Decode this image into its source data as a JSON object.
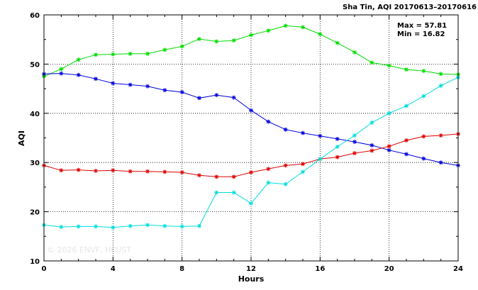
{
  "chart_data": {
    "type": "line",
    "title": "Sha Tin, AQI 20170613–20170616",
    "stats": [
      "Max = 57.81",
      "Min = 16.82"
    ],
    "xlabel": "Hours",
    "ylabel": "AQI",
    "xlim": [
      0,
      24
    ],
    "ylim": [
      10,
      60
    ],
    "xticks": [
      0,
      4,
      8,
      12,
      16,
      20,
      24
    ],
    "yticks": [
      10,
      20,
      30,
      40,
      50,
      60
    ],
    "grid": true,
    "watermark": "© 2026  ENVF, HKUST",
    "x": [
      0,
      1,
      2,
      3,
      4,
      5,
      6,
      7,
      8,
      9,
      10,
      11,
      12,
      13,
      14,
      15,
      16,
      17,
      18,
      19,
      20,
      21,
      22,
      23,
      24
    ],
    "series": [
      {
        "color": "#00dd00",
        "values": [
          47.5,
          49.0,
          50.9,
          51.9,
          52.0,
          52.1,
          52.1,
          52.9,
          53.6,
          55.1,
          54.6,
          54.8,
          55.9,
          56.8,
          57.8,
          57.5,
          56.1,
          54.3,
          52.4,
          50.3,
          49.7,
          48.9,
          48.6,
          48.0,
          47.9
        ]
      },
      {
        "color": "#0000dd",
        "values": [
          48.0,
          48.1,
          47.8,
          47.0,
          46.1,
          45.8,
          45.5,
          44.7,
          44.3,
          43.1,
          43.7,
          43.2,
          40.6,
          38.3,
          36.7,
          36.0,
          35.4,
          34.8,
          34.2,
          33.5,
          32.5,
          31.7,
          30.8,
          30.0,
          29.4
        ]
      },
      {
        "color": "#dd0000",
        "values": [
          29.4,
          28.4,
          28.5,
          28.3,
          28.4,
          28.2,
          28.2,
          28.1,
          28.0,
          27.4,
          27.1,
          27.1,
          28.0,
          28.7,
          29.4,
          29.7,
          30.7,
          31.1,
          31.9,
          32.4,
          33.3,
          34.5,
          35.3,
          35.5,
          35.8
        ]
      },
      {
        "color": "#00dddd",
        "values": [
          17.3,
          16.9,
          17.0,
          17.0,
          16.8,
          17.1,
          17.3,
          17.1,
          17.0,
          17.1,
          23.9,
          23.9,
          21.7,
          25.9,
          25.6,
          28.1,
          30.7,
          33.2,
          35.5,
          38.1,
          40.0,
          41.5,
          43.5,
          45.6,
          47.3
        ]
      }
    ]
  }
}
